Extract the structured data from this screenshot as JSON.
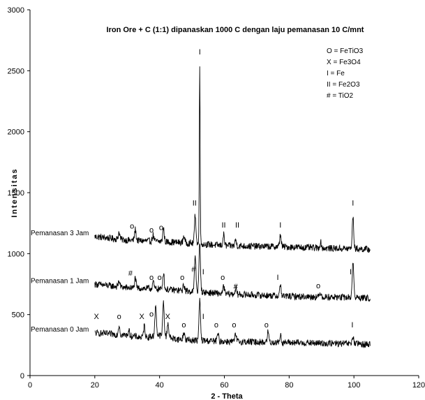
{
  "chart_data": {
    "type": "line",
    "title": "Iron Ore + C (1:1) dipanaskan 1000 C dengan laju pemanasan 10 C/mnt",
    "xlabel": "2 - Theta",
    "ylabel": "Intensitas",
    "xlim": [
      0,
      120
    ],
    "ylim": [
      0,
      3000
    ],
    "x_ticks": [
      0,
      20,
      40,
      60,
      80,
      100,
      120
    ],
    "y_ticks": [
      0,
      500,
      1000,
      1500,
      2000,
      2500,
      3000
    ],
    "legend": [
      "O = FeTiO3",
      "X = Fe3O4",
      "I = Fe",
      "II = Fe2O3",
      "# = TiO2"
    ],
    "series": [
      {
        "name": "Pemanasan 3 Jam",
        "baseline": [
          [
            20,
            1140
          ],
          [
            30,
            1110
          ],
          [
            40,
            1100
          ],
          [
            50,
            1085
          ],
          [
            60,
            1065
          ],
          [
            70,
            1060
          ],
          [
            80,
            1055
          ],
          [
            90,
            1045
          ],
          [
            100,
            1040
          ],
          [
            105,
            1035
          ]
        ],
        "peaks": [
          [
            27.5,
            60
          ],
          [
            32.5,
            90
          ],
          [
            38,
            50
          ],
          [
            41.2,
            110
          ],
          [
            47.5,
            60
          ],
          [
            51,
            240
          ],
          [
            52.4,
            1480
          ],
          [
            59.8,
            90
          ],
          [
            63.5,
            50
          ],
          [
            77.3,
            100
          ],
          [
            89.7,
            50
          ],
          [
            99.7,
            260
          ]
        ]
      },
      {
        "name": "Pemanasan 1 Jam",
        "baseline": [
          [
            20,
            750
          ],
          [
            30,
            720
          ],
          [
            40,
            710
          ],
          [
            50,
            690
          ],
          [
            60,
            670
          ],
          [
            70,
            660
          ],
          [
            80,
            650
          ],
          [
            90,
            645
          ],
          [
            100,
            640
          ],
          [
            105,
            635
          ]
        ],
        "peaks": [
          [
            27.5,
            50
          ],
          [
            32.5,
            80
          ],
          [
            38,
            60
          ],
          [
            41.2,
            140
          ],
          [
            47.5,
            50
          ],
          [
            51,
            300
          ],
          [
            52.4,
            400
          ],
          [
            59.8,
            60
          ],
          [
            63.5,
            50
          ],
          [
            77.3,
            90
          ],
          [
            89.7,
            40
          ],
          [
            99.7,
            300
          ]
        ]
      },
      {
        "name": "Pemanasan 0 Jam",
        "baseline": [
          [
            20,
            350
          ],
          [
            30,
            330
          ],
          [
            35,
            310
          ],
          [
            40,
            330
          ],
          [
            45,
            300
          ],
          [
            50,
            290
          ],
          [
            60,
            280
          ],
          [
            70,
            275
          ],
          [
            80,
            270
          ],
          [
            90,
            265
          ],
          [
            100,
            260
          ],
          [
            105,
            255
          ]
        ],
        "peaks": [
          [
            27.5,
            80
          ],
          [
            30.5,
            40
          ],
          [
            35.3,
            100
          ],
          [
            38.8,
            260
          ],
          [
            41.2,
            280
          ],
          [
            42.6,
            120
          ],
          [
            47.5,
            60
          ],
          [
            52.4,
            330
          ],
          [
            58,
            60
          ],
          [
            63.5,
            60
          ],
          [
            73.5,
            90
          ],
          [
            77.3,
            60
          ],
          [
            99.7,
            60
          ]
        ]
      }
    ],
    "peak_markers": [
      {
        "text": "I",
        "x": 52.4,
        "y": 2635
      },
      {
        "text": "II",
        "x": 50.8,
        "y": 1395
      },
      {
        "text": "II",
        "x": 59.8,
        "y": 1215
      },
      {
        "text": "II",
        "x": 64,
        "y": 1215
      },
      {
        "text": "I",
        "x": 77.3,
        "y": 1215
      },
      {
        "text": "I",
        "x": 99.7,
        "y": 1395
      },
      {
        "text": "o",
        "x": 31.5,
        "y": 1205
      },
      {
        "text": "o",
        "x": 37.5,
        "y": 1175
      },
      {
        "text": "o",
        "x": 40.5,
        "y": 1195
      },
      {
        "text": "#",
        "x": 31,
        "y": 820
      },
      {
        "text": "o",
        "x": 37.5,
        "y": 785
      },
      {
        "text": "o",
        "x": 40,
        "y": 785
      },
      {
        "text": "o",
        "x": 47,
        "y": 785
      },
      {
        "text": "#",
        "x": 50.5,
        "y": 850
      },
      {
        "text": "I",
        "x": 53.5,
        "y": 830
      },
      {
        "text": "o",
        "x": 59.5,
        "y": 785
      },
      {
        "text": "#",
        "x": 63.5,
        "y": 710
      },
      {
        "text": "I",
        "x": 76.5,
        "y": 785
      },
      {
        "text": "o",
        "x": 89,
        "y": 715
      },
      {
        "text": "I",
        "x": 99,
        "y": 830
      },
      {
        "text": "X",
        "x": 20.5,
        "y": 465
      },
      {
        "text": "o",
        "x": 27.5,
        "y": 465
      },
      {
        "text": "X",
        "x": 34.5,
        "y": 465
      },
      {
        "text": "o",
        "x": 37.5,
        "y": 485
      },
      {
        "text": "X",
        "x": 42.5,
        "y": 465
      },
      {
        "text": "o",
        "x": 47.5,
        "y": 395
      },
      {
        "text": "I",
        "x": 53.5,
        "y": 465
      },
      {
        "text": "o",
        "x": 57.5,
        "y": 395
      },
      {
        "text": "o",
        "x": 63,
        "y": 395
      },
      {
        "text": "o",
        "x": 73,
        "y": 395
      },
      {
        "text": "I",
        "x": 99.5,
        "y": 395
      }
    ]
  }
}
